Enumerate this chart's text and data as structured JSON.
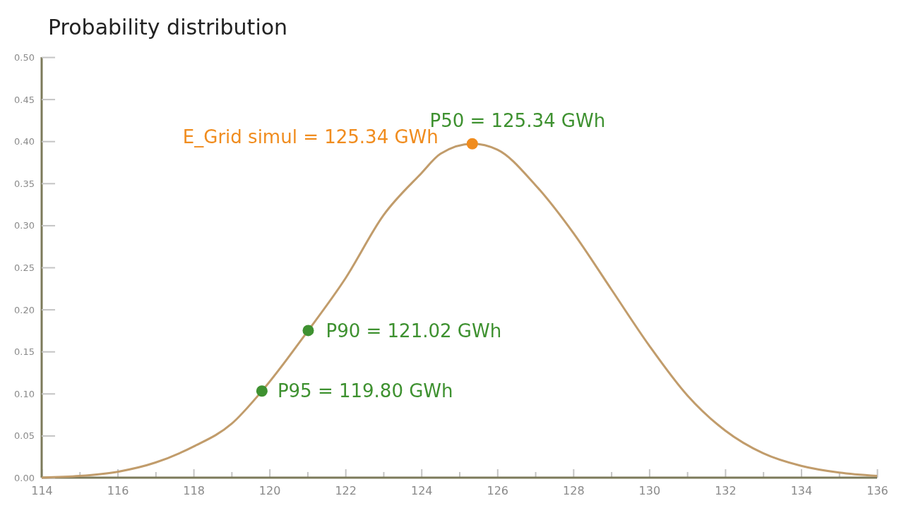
{
  "chart_data": {
    "type": "line",
    "title": "Probability distribution",
    "xlim": [
      114,
      136
    ],
    "xticks": [
      114,
      {
        "value": 115,
        "label": null
      },
      116,
      {
        "value": 117,
        "label": null
      },
      118,
      {
        "value": 119,
        "label": null
      },
      120,
      {
        "value": 121,
        "label": null
      },
      122,
      {
        "value": 123,
        "label": null
      },
      124,
      {
        "value": 125,
        "label": null
      },
      126,
      {
        "value": 127,
        "label": null
      },
      128,
      {
        "value": 129,
        "label": null
      },
      130,
      {
        "value": 131,
        "label": null
      },
      132,
      {
        "value": 133,
        "label": null
      },
      134,
      {
        "value": 135,
        "label": null
      },
      136
    ],
    "ylim": [
      0,
      0.5
    ],
    "yticks": [
      {
        "value": 0,
        "label": "0.00"
      },
      {
        "value": 0.05,
        "label": "0.05"
      },
      {
        "value": 0.1,
        "label": "0.10"
      },
      {
        "value": 0.15,
        "label": "0.15"
      },
      {
        "value": 0.2,
        "label": "0.20"
      },
      {
        "value": 0.25,
        "label": "0.25"
      },
      {
        "value": 0.3,
        "label": "0.30"
      },
      {
        "value": 0.35,
        "label": "0.35"
      },
      {
        "value": 0.4,
        "label": "0.40"
      },
      {
        "value": 0.45,
        "label": "0.45"
      },
      {
        "value": 0.5,
        "label": "0.50"
      }
    ],
    "grid": false,
    "series": [
      {
        "color": "#c19c6b",
        "marker": "none",
        "line_style": "solid",
        "x": [
          114,
          115,
          116,
          117,
          118,
          119,
          119.8,
          121.02,
          122,
          123,
          124,
          124.5,
          125.34,
          126,
          127,
          128,
          129,
          130,
          131,
          132,
          133,
          134,
          135,
          136
        ],
        "values": [
          0,
          0.002,
          0.007,
          0.018,
          0.037,
          0.064,
          0.103,
          0.175,
          0.237,
          0.312,
          0.362,
          0.385,
          0.397,
          0.39,
          0.348,
          0.291,
          0.224,
          0.157,
          0.098,
          0.056,
          0.029,
          0.014,
          0.006,
          0.002
        ]
      },
      {
        "type": "scatter",
        "marker": "circle",
        "colors": [
          "#3e9130",
          "#3e9130",
          "#f08c1e"
        ],
        "x": [
          119.8,
          121.02,
          125.34
        ],
        "values": [
          0.103,
          0.175,
          0.397
        ]
      }
    ],
    "annotations": [
      {
        "text": "P95 = 119.80 GWh",
        "x": 119.8,
        "y": 0.103
      },
      {
        "text": "P90 = 121.02 GWh",
        "x": 121.02,
        "y": 0.175
      },
      {
        "text": "P50 = 125.34 GWh",
        "x": 125.34,
        "y": 0.397
      },
      {
        "text": "E_Grid simul = 125.34 GWh",
        "x": 125.34,
        "y": 0.397
      }
    ]
  }
}
